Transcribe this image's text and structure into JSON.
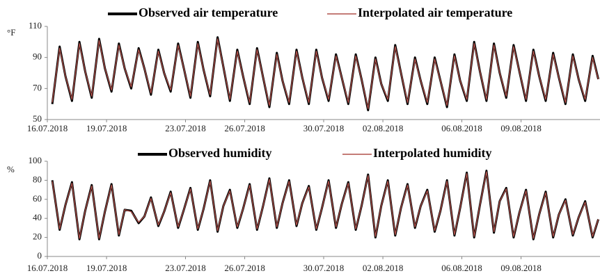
{
  "chart_data": [
    {
      "type": "line",
      "y_label": "°F",
      "x": [
        "2018-07-16T06:00",
        "2018-07-16T15:00",
        "2018-07-16T22:00",
        "2018-07-17T06:00",
        "2018-07-17T15:00",
        "2018-07-17T22:00",
        "2018-07-18T06:00",
        "2018-07-18T15:00",
        "2018-07-18T22:00",
        "2018-07-19T06:00",
        "2018-07-19T15:00",
        "2018-07-19T22:00",
        "2018-07-20T06:00",
        "2018-07-20T15:00",
        "2018-07-20T22:00",
        "2018-07-21T06:00",
        "2018-07-21T15:00",
        "2018-07-21T22:00",
        "2018-07-22T06:00",
        "2018-07-22T15:00",
        "2018-07-22T22:00",
        "2018-07-23T06:00",
        "2018-07-23T15:00",
        "2018-07-23T22:00",
        "2018-07-24T06:00",
        "2018-07-24T15:00",
        "2018-07-24T22:00",
        "2018-07-25T06:00",
        "2018-07-25T15:00",
        "2018-07-25T22:00",
        "2018-07-26T06:00",
        "2018-07-26T15:00",
        "2018-07-26T22:00",
        "2018-07-27T06:00",
        "2018-07-27T15:00",
        "2018-07-27T22:00",
        "2018-07-28T06:00",
        "2018-07-28T15:00",
        "2018-07-28T22:00",
        "2018-07-29T06:00",
        "2018-07-29T15:00",
        "2018-07-29T22:00",
        "2018-07-30T06:00",
        "2018-07-30T15:00",
        "2018-07-30T22:00",
        "2018-07-31T06:00",
        "2018-07-31T15:00",
        "2018-07-31T22:00",
        "2018-08-01T06:00",
        "2018-08-01T15:00",
        "2018-08-01T22:00",
        "2018-08-02T06:00",
        "2018-08-02T15:00",
        "2018-08-02T22:00",
        "2018-08-03T06:00",
        "2018-08-03T15:00",
        "2018-08-03T22:00",
        "2018-08-04T06:00",
        "2018-08-04T15:00",
        "2018-08-04T22:00",
        "2018-08-05T06:00",
        "2018-08-05T15:00",
        "2018-08-05T22:00",
        "2018-08-06T06:00",
        "2018-08-06T15:00",
        "2018-08-06T22:00",
        "2018-08-07T06:00",
        "2018-08-07T15:00",
        "2018-08-07T22:00",
        "2018-08-08T06:00",
        "2018-08-08T15:00",
        "2018-08-08T22:00",
        "2018-08-09T06:00",
        "2018-08-09T15:00",
        "2018-08-09T22:00",
        "2018-08-10T06:00",
        "2018-08-10T15:00",
        "2018-08-10T22:00",
        "2018-08-11T06:00",
        "2018-08-11T15:00",
        "2018-08-11T22:00",
        "2018-08-12T06:00",
        "2018-08-12T15:00",
        "2018-08-12T22:00"
      ],
      "series": [
        {
          "name": "Observed air temperature",
          "color": "#000000",
          "values": [
            60,
            97,
            78,
            62,
            100,
            81,
            64,
            102,
            83,
            68,
            99,
            83,
            70,
            96,
            83,
            66,
            95,
            80,
            68,
            99,
            83,
            64,
            100,
            82,
            65,
            103,
            84,
            62,
            95,
            78,
            60,
            96,
            78,
            58,
            93,
            75,
            60,
            95,
            77,
            60,
            95,
            77,
            62,
            92,
            77,
            60,
            92,
            76,
            56,
            90,
            73,
            62,
            98,
            80,
            60,
            90,
            75,
            60,
            90,
            75,
            58,
            92,
            75,
            62,
            100,
            81,
            62,
            99,
            80,
            64,
            98,
            81,
            62,
            95,
            78,
            62,
            93,
            77,
            60,
            92,
            76,
            62,
            91,
            76
          ]
        },
        {
          "name": "Interpolated air temperature",
          "color": "#b0504a",
          "values": [
            61,
            96,
            78,
            63,
            99,
            81,
            65,
            101,
            83,
            69,
            98,
            83,
            71,
            95,
            83,
            67,
            94,
            80,
            69,
            98,
            83,
            65,
            99,
            82,
            66,
            102,
            84,
            63,
            94,
            78,
            61,
            95,
            78,
            59,
            92,
            75,
            61,
            94,
            77,
            61,
            94,
            77,
            63,
            91,
            77,
            61,
            91,
            76,
            57,
            89,
            73,
            63,
            97,
            80,
            61,
            89,
            75,
            61,
            89,
            75,
            59,
            91,
            75,
            63,
            99,
            81,
            63,
            98,
            80,
            65,
            97,
            81,
            63,
            94,
            78,
            63,
            92,
            77,
            61,
            91,
            76,
            63,
            90,
            76
          ]
        }
      ],
      "xlim": [
        "2018-07-16T00:00",
        "2018-08-13T00:00"
      ],
      "xticks": [
        {
          "value": "2018-07-16T00:00",
          "label": "16.07.2018"
        },
        {
          "value": "2018-07-19T00:00",
          "label": "19.07.2018"
        },
        {
          "value": "2018-07-23T00:00",
          "label": "23.07.2018"
        },
        {
          "value": "2018-07-26T00:00",
          "label": "26.07.2018"
        },
        {
          "value": "2018-07-30T00:00",
          "label": "30.07.2018"
        },
        {
          "value": "2018-08-02T00:00",
          "label": "02.08.2018"
        },
        {
          "value": "2018-08-06T00:00",
          "label": "06.08.2018"
        },
        {
          "value": "2018-08-09T00:00",
          "label": "09.08.2018"
        }
      ],
      "ylim": [
        50,
        110
      ],
      "yticks": [
        50,
        70,
        90,
        110
      ]
    },
    {
      "type": "line",
      "y_label": "%",
      "x": [
        "2018-07-16T06:00",
        "2018-07-16T15:00",
        "2018-07-16T22:00",
        "2018-07-17T06:00",
        "2018-07-17T15:00",
        "2018-07-17T22:00",
        "2018-07-18T06:00",
        "2018-07-18T15:00",
        "2018-07-18T22:00",
        "2018-07-19T06:00",
        "2018-07-19T15:00",
        "2018-07-19T22:00",
        "2018-07-20T06:00",
        "2018-07-20T15:00",
        "2018-07-20T22:00",
        "2018-07-21T06:00",
        "2018-07-21T15:00",
        "2018-07-21T22:00",
        "2018-07-22T06:00",
        "2018-07-22T15:00",
        "2018-07-22T22:00",
        "2018-07-23T06:00",
        "2018-07-23T15:00",
        "2018-07-23T22:00",
        "2018-07-24T06:00",
        "2018-07-24T15:00",
        "2018-07-24T22:00",
        "2018-07-25T06:00",
        "2018-07-25T15:00",
        "2018-07-25T22:00",
        "2018-07-26T06:00",
        "2018-07-26T15:00",
        "2018-07-26T22:00",
        "2018-07-27T06:00",
        "2018-07-27T15:00",
        "2018-07-27T22:00",
        "2018-07-28T06:00",
        "2018-07-28T15:00",
        "2018-07-28T22:00",
        "2018-07-29T06:00",
        "2018-07-29T15:00",
        "2018-07-29T22:00",
        "2018-07-30T06:00",
        "2018-07-30T15:00",
        "2018-07-30T22:00",
        "2018-07-31T06:00",
        "2018-07-31T15:00",
        "2018-07-31T22:00",
        "2018-08-01T06:00",
        "2018-08-01T15:00",
        "2018-08-01T22:00",
        "2018-08-02T06:00",
        "2018-08-02T15:00",
        "2018-08-02T22:00",
        "2018-08-03T06:00",
        "2018-08-03T15:00",
        "2018-08-03T22:00",
        "2018-08-04T06:00",
        "2018-08-04T15:00",
        "2018-08-04T22:00",
        "2018-08-05T06:00",
        "2018-08-05T15:00",
        "2018-08-05T22:00",
        "2018-08-06T06:00",
        "2018-08-06T15:00",
        "2018-08-06T22:00",
        "2018-08-07T06:00",
        "2018-08-07T15:00",
        "2018-08-07T22:00",
        "2018-08-08T06:00",
        "2018-08-08T15:00",
        "2018-08-08T22:00",
        "2018-08-09T06:00",
        "2018-08-09T15:00",
        "2018-08-09T22:00",
        "2018-08-10T06:00",
        "2018-08-10T15:00",
        "2018-08-10T22:00",
        "2018-08-11T06:00",
        "2018-08-11T15:00",
        "2018-08-11T22:00",
        "2018-08-12T06:00",
        "2018-08-12T15:00",
        "2018-08-12T22:00"
      ],
      "series": [
        {
          "name": "Observed humidity",
          "color": "#000000",
          "values": [
            80,
            28,
            54,
            78,
            18,
            48,
            75,
            18,
            47,
            76,
            22,
            49,
            48,
            35,
            42,
            62,
            32,
            47,
            68,
            30,
            49,
            72,
            28,
            50,
            80,
            26,
            53,
            70,
            30,
            50,
            76,
            28,
            52,
            82,
            30,
            56,
            80,
            32,
            56,
            74,
            28,
            51,
            80,
            30,
            55,
            78,
            28,
            53,
            86,
            20,
            53,
            80,
            22,
            51,
            76,
            30,
            53,
            70,
            26,
            48,
            80,
            22,
            51,
            88,
            20,
            54,
            90,
            25,
            58,
            72,
            20,
            46,
            70,
            18,
            44,
            68,
            20,
            44,
            60,
            22,
            41,
            58,
            20,
            39
          ]
        },
        {
          "name": "Interpolated humidity",
          "color": "#b0504a",
          "values": [
            79,
            29,
            54,
            77,
            19,
            48,
            74,
            19,
            47,
            75,
            23,
            49,
            47,
            36,
            42,
            61,
            33,
            47,
            67,
            31,
            49,
            71,
            29,
            50,
            79,
            27,
            53,
            69,
            31,
            50,
            75,
            29,
            52,
            81,
            31,
            56,
            79,
            33,
            56,
            73,
            29,
            51,
            79,
            31,
            55,
            77,
            29,
            53,
            85,
            21,
            53,
            79,
            23,
            51,
            75,
            31,
            53,
            69,
            27,
            48,
            79,
            23,
            51,
            87,
            21,
            54,
            89,
            26,
            58,
            71,
            21,
            46,
            69,
            19,
            44,
            67,
            21,
            44,
            59,
            23,
            41,
            57,
            21,
            39
          ]
        }
      ],
      "xlim": [
        "2018-07-16T00:00",
        "2018-08-13T00:00"
      ],
      "xticks": [
        {
          "value": "2018-07-16T00:00",
          "label": "16.07.2018"
        },
        {
          "value": "2018-07-19T00:00",
          "label": "19.07.2018"
        },
        {
          "value": "2018-07-23T00:00",
          "label": "23.07.2018"
        },
        {
          "value": "2018-07-26T00:00",
          "label": "26.07.2018"
        },
        {
          "value": "2018-07-30T00:00",
          "label": "30.07.2018"
        },
        {
          "value": "2018-08-02T00:00",
          "label": "02.08.2018"
        },
        {
          "value": "2018-08-06T00:00",
          "label": "06.08.2018"
        },
        {
          "value": "2018-08-09T00:00",
          "label": "09.08.2018"
        }
      ],
      "ylim": [
        0,
        100
      ],
      "yticks": [
        0,
        20,
        40,
        60,
        80,
        100
      ]
    }
  ]
}
